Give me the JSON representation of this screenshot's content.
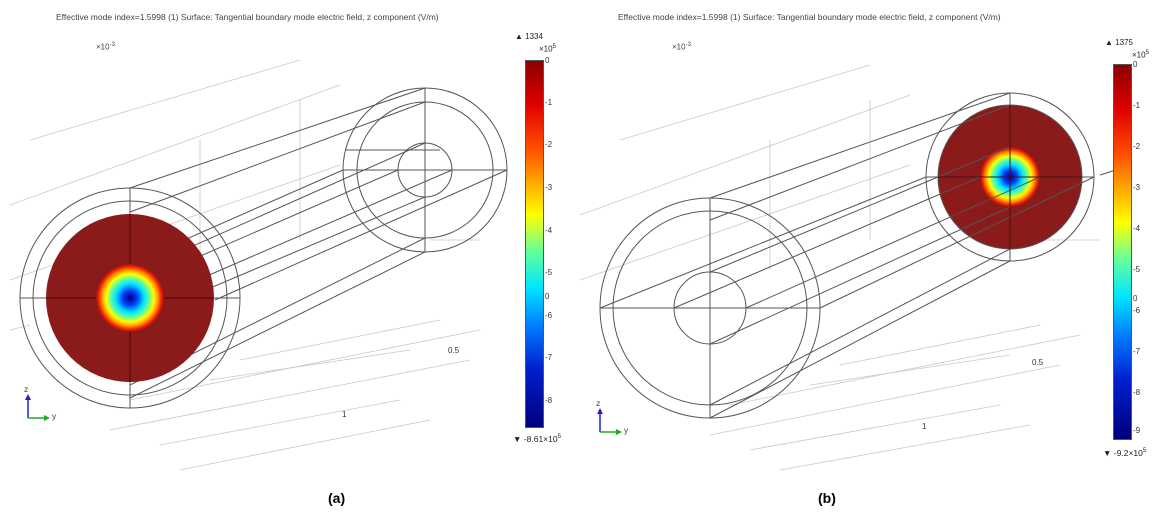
{
  "panel_a": {
    "title": "Effective mode index=1.5998 (1)    Surface: Tangential boundary mode electric field, z component (V/m)",
    "axis_exponent": "×10",
    "axis_exponent_power": "-3",
    "colorbar_max": "1334",
    "colorbar_min": "-8.61×10",
    "colorbar_min_power": "5",
    "colorbar_unit": "×10",
    "colorbar_unit_power": "5",
    "ticks": [
      "0",
      "-1",
      "-2",
      "-3",
      "-4",
      "-5",
      "0",
      "-6",
      "-7",
      "-8"
    ],
    "scale_labels": [
      "0.5",
      "1"
    ],
    "axis_z": "z",
    "axis_y": "y",
    "caption": "(a)"
  },
  "panel_b": {
    "title": "Effective mode index=1.5998 (1)    Surface: Tangential boundary mode electric field, z component (V/m)",
    "axis_exponent": "×10",
    "axis_exponent_power": "-3",
    "colorbar_max": "1375",
    "colorbar_min": "-9.2×10",
    "colorbar_min_power": "5",
    "colorbar_unit": "×10",
    "colorbar_unit_power": "5",
    "ticks": [
      "0",
      "-1",
      "-2",
      "-3",
      "-4",
      "-5",
      "0",
      "-6",
      "-7",
      "-8",
      "-9"
    ],
    "scale_labels": [
      "0.5",
      "1"
    ],
    "axis_z": "z",
    "axis_y": "y",
    "caption": "(b)"
  },
  "colors": {
    "field_outer": "#8b1a1a",
    "colormap": [
      "#8b0000",
      "#ff2000",
      "#ff9a00",
      "#ffff00",
      "#66ff99",
      "#00e5ff",
      "#0060ff",
      "#0000b0",
      "#00007a"
    ]
  },
  "marker_up": "▲",
  "marker_down": "▼"
}
